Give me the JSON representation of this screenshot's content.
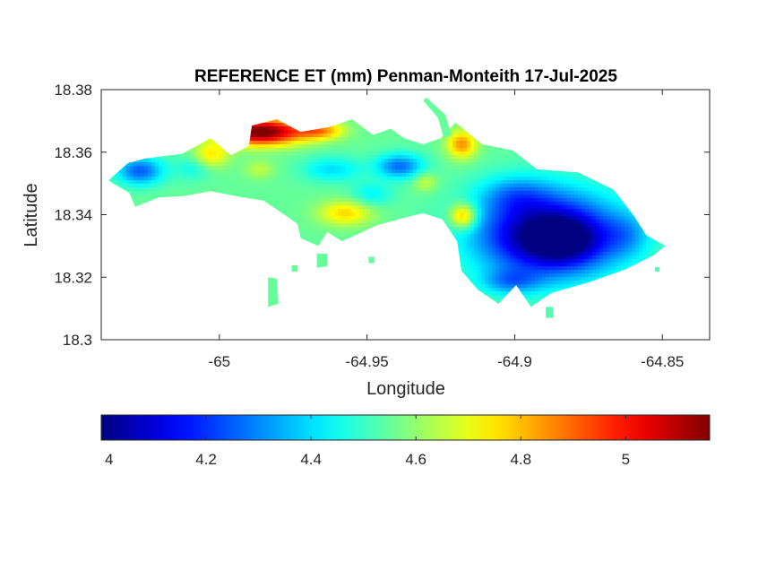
{
  "chart_data": {
    "type": "heatmap",
    "title": "REFERENCE ET (mm) Penman-Monteith 17-Jul-2025",
    "xlabel": "Longitude",
    "ylabel": "Latitude",
    "xlim": [
      -65.04,
      -64.834
    ],
    "ylim": [
      18.3,
      18.38
    ],
    "xticks": [
      -65,
      -64.95,
      -64.9,
      -64.85
    ],
    "xtick_labels": [
      "-65",
      "-64.95",
      "-64.9",
      "-64.85"
    ],
    "yticks": [
      18.3,
      18.32,
      18.34,
      18.36,
      18.38
    ],
    "ytick_labels": [
      "18.3",
      "18.32",
      "18.34",
      "18.36",
      "18.38"
    ],
    "colormap": "jet",
    "colorbar": {
      "range": [
        4.0,
        5.16
      ],
      "ticks": [
        4,
        4.2,
        4.4,
        4.6,
        4.8,
        5
      ],
      "tick_labels": [
        "4",
        "4.2",
        "4.4",
        "4.6",
        "4.8",
        "5"
      ],
      "orientation": "horizontal",
      "placement": "below"
    },
    "grid": false,
    "region": [
      {
        "lon": -65.0375,
        "lat": 18.351
      },
      {
        "lon": -65.031,
        "lat": 18.3565
      },
      {
        "lon": -65.025,
        "lat": 18.358
      },
      {
        "lon": -65.0125,
        "lat": 18.3595
      },
      {
        "lon": -65.003,
        "lat": 18.3645
      },
      {
        "lon": -64.996,
        "lat": 18.359
      },
      {
        "lon": -64.99,
        "lat": 18.362
      },
      {
        "lon": -64.989,
        "lat": 18.3685
      },
      {
        "lon": -64.9805,
        "lat": 18.3705
      },
      {
        "lon": -64.9725,
        "lat": 18.3665
      },
      {
        "lon": -64.963,
        "lat": 18.368
      },
      {
        "lon": -64.955,
        "lat": 18.3705
      },
      {
        "lon": -64.948,
        "lat": 18.3655
      },
      {
        "lon": -64.942,
        "lat": 18.3675
      },
      {
        "lon": -64.9375,
        "lat": 18.3645
      },
      {
        "lon": -64.931,
        "lat": 18.3625
      },
      {
        "lon": -64.925,
        "lat": 18.3645
      },
      {
        "lon": -64.92,
        "lat": 18.3695
      },
      {
        "lon": -64.911,
        "lat": 18.3625
      },
      {
        "lon": -64.9005,
        "lat": 18.3605
      },
      {
        "lon": -64.8925,
        "lat": 18.3545
      },
      {
        "lon": -64.8785,
        "lat": 18.3535
      },
      {
        "lon": -64.8665,
        "lat": 18.348
      },
      {
        "lon": -64.8595,
        "lat": 18.3395
      },
      {
        "lon": -64.8555,
        "lat": 18.3335
      },
      {
        "lon": -64.849,
        "lat": 18.33
      },
      {
        "lon": -64.853,
        "lat": 18.327
      },
      {
        "lon": -64.8625,
        "lat": 18.3225
      },
      {
        "lon": -64.8745,
        "lat": 18.3185
      },
      {
        "lon": -64.8875,
        "lat": 18.315
      },
      {
        "lon": -64.8945,
        "lat": 18.3105
      },
      {
        "lon": -64.8995,
        "lat": 18.3175
      },
      {
        "lon": -64.9055,
        "lat": 18.3115
      },
      {
        "lon": -64.9125,
        "lat": 18.316
      },
      {
        "lon": -64.918,
        "lat": 18.322
      },
      {
        "lon": -64.9195,
        "lat": 18.3315
      },
      {
        "lon": -64.9245,
        "lat": 18.3385
      },
      {
        "lon": -64.931,
        "lat": 18.3405
      },
      {
        "lon": -64.9375,
        "lat": 18.339
      },
      {
        "lon": -64.947,
        "lat": 18.3365
      },
      {
        "lon": -64.9525,
        "lat": 18.334
      },
      {
        "lon": -64.9585,
        "lat": 18.3315
      },
      {
        "lon": -64.9635,
        "lat": 18.3345
      },
      {
        "lon": -64.9665,
        "lat": 18.33
      },
      {
        "lon": -64.9725,
        "lat": 18.3325
      },
      {
        "lon": -64.9735,
        "lat": 18.337
      },
      {
        "lon": -64.978,
        "lat": 18.34
      },
      {
        "lon": -64.985,
        "lat": 18.3445
      },
      {
        "lon": -64.992,
        "lat": 18.3455
      },
      {
        "lon": -65.003,
        "lat": 18.3475
      },
      {
        "lon": -65.012,
        "lat": 18.346
      },
      {
        "lon": -65.0205,
        "lat": 18.3455
      },
      {
        "lon": -65.0285,
        "lat": 18.3425
      },
      {
        "lon": -65.0305,
        "lat": 18.347
      },
      {
        "lon": -65.036,
        "lat": 18.35
      }
    ],
    "islets": [
      [
        {
          "lon": -64.93,
          "lat": 18.3775
        },
        {
          "lon": -64.9235,
          "lat": 18.372
        },
        {
          "lon": -64.9215,
          "lat": 18.3655
        },
        {
          "lon": -64.924,
          "lat": 18.3645
        },
        {
          "lon": -64.926,
          "lat": 18.371
        },
        {
          "lon": -64.931,
          "lat": 18.3765
        }
      ],
      [
        {
          "lon": -64.9835,
          "lat": 18.32
        },
        {
          "lon": -64.9805,
          "lat": 18.3195
        },
        {
          "lon": -64.98,
          "lat": 18.3115
        },
        {
          "lon": -64.9835,
          "lat": 18.3105
        }
      ],
      [
        {
          "lon": -64.967,
          "lat": 18.3275
        },
        {
          "lon": -64.9635,
          "lat": 18.3275
        },
        {
          "lon": -64.9635,
          "lat": 18.3235
        },
        {
          "lon": -64.967,
          "lat": 18.323
        }
      ],
      [
        {
          "lon": -64.9755,
          "lat": 18.3238
        },
        {
          "lon": -64.9735,
          "lat": 18.3238
        },
        {
          "lon": -64.9735,
          "lat": 18.3218
        },
        {
          "lon": -64.9755,
          "lat": 18.3218
        }
      ],
      [
        {
          "lon": -64.9495,
          "lat": 18.3265
        },
        {
          "lon": -64.9475,
          "lat": 18.3265
        },
        {
          "lon": -64.9475,
          "lat": 18.3245
        },
        {
          "lon": -64.9495,
          "lat": 18.3245
        }
      ],
      [
        {
          "lon": -64.8525,
          "lat": 18.3232
        },
        {
          "lon": -64.851,
          "lat": 18.3232
        },
        {
          "lon": -64.851,
          "lat": 18.3218
        },
        {
          "lon": -64.8525,
          "lat": 18.3218
        }
      ],
      [
        {
          "lon": -64.8895,
          "lat": 18.3105
        },
        {
          "lon": -64.887,
          "lat": 18.3105
        },
        {
          "lon": -64.887,
          "lat": 18.307
        },
        {
          "lon": -64.8895,
          "lat": 18.307
        }
      ]
    ],
    "field": {
      "base": 4.55,
      "anomalies": [
        {
          "lon": -64.986,
          "lat": 18.3665,
          "amp": 0.65,
          "r_lon": 0.014,
          "r_lat": 0.0042
        },
        {
          "lon": -64.966,
          "lat": 18.367,
          "amp": 0.28,
          "r_lon": 0.008,
          "r_lat": 0.003
        },
        {
          "lon": -65.003,
          "lat": 18.359,
          "amp": 0.2,
          "r_lon": 0.006,
          "r_lat": 0.004
        },
        {
          "lon": -64.9575,
          "lat": 18.3405,
          "amp": 0.22,
          "r_lon": 0.009,
          "r_lat": 0.004
        },
        {
          "lon": -64.918,
          "lat": 18.3625,
          "amp": 0.3,
          "r_lon": 0.005,
          "r_lat": 0.0045
        },
        {
          "lon": -64.9175,
          "lat": 18.3395,
          "amp": 0.32,
          "r_lon": 0.0045,
          "r_lat": 0.004
        },
        {
          "lon": -64.9305,
          "lat": 18.3505,
          "amp": 0.12,
          "r_lon": 0.004,
          "r_lat": 0.003
        },
        {
          "lon": -65.027,
          "lat": 18.354,
          "amp": -0.3,
          "r_lon": 0.008,
          "r_lat": 0.0045
        },
        {
          "lon": -65.009,
          "lat": 18.355,
          "amp": -0.1,
          "r_lon": 0.006,
          "r_lat": 0.004
        },
        {
          "lon": -64.962,
          "lat": 18.3545,
          "amp": -0.15,
          "r_lon": 0.01,
          "r_lat": 0.004
        },
        {
          "lon": -64.939,
          "lat": 18.3555,
          "amp": -0.28,
          "r_lon": 0.008,
          "r_lat": 0.004
        },
        {
          "lon": -64.9485,
          "lat": 18.3465,
          "amp": -0.12,
          "r_lon": 0.007,
          "r_lat": 0.004
        },
        {
          "lon": -64.9865,
          "lat": 18.3545,
          "amp": 0.1,
          "r_lon": 0.005,
          "r_lat": 0.003
        },
        {
          "lon": -64.889,
          "lat": 18.3335,
          "amp": -0.58,
          "r_lon": 0.024,
          "r_lat": 0.0135
        },
        {
          "lon": -64.883,
          "lat": 18.3315,
          "amp": -0.18,
          "r_lon": 0.012,
          "r_lat": 0.007
        },
        {
          "lon": -64.9,
          "lat": 18.3465,
          "amp": -0.15,
          "r_lon": 0.012,
          "r_lat": 0.006
        },
        {
          "lon": -64.862,
          "lat": 18.3335,
          "amp": -0.12,
          "r_lon": 0.008,
          "r_lat": 0.007
        },
        {
          "lon": -64.9015,
          "lat": 18.3185,
          "amp": -0.18,
          "r_lon": 0.01,
          "r_lat": 0.004
        }
      ]
    }
  }
}
